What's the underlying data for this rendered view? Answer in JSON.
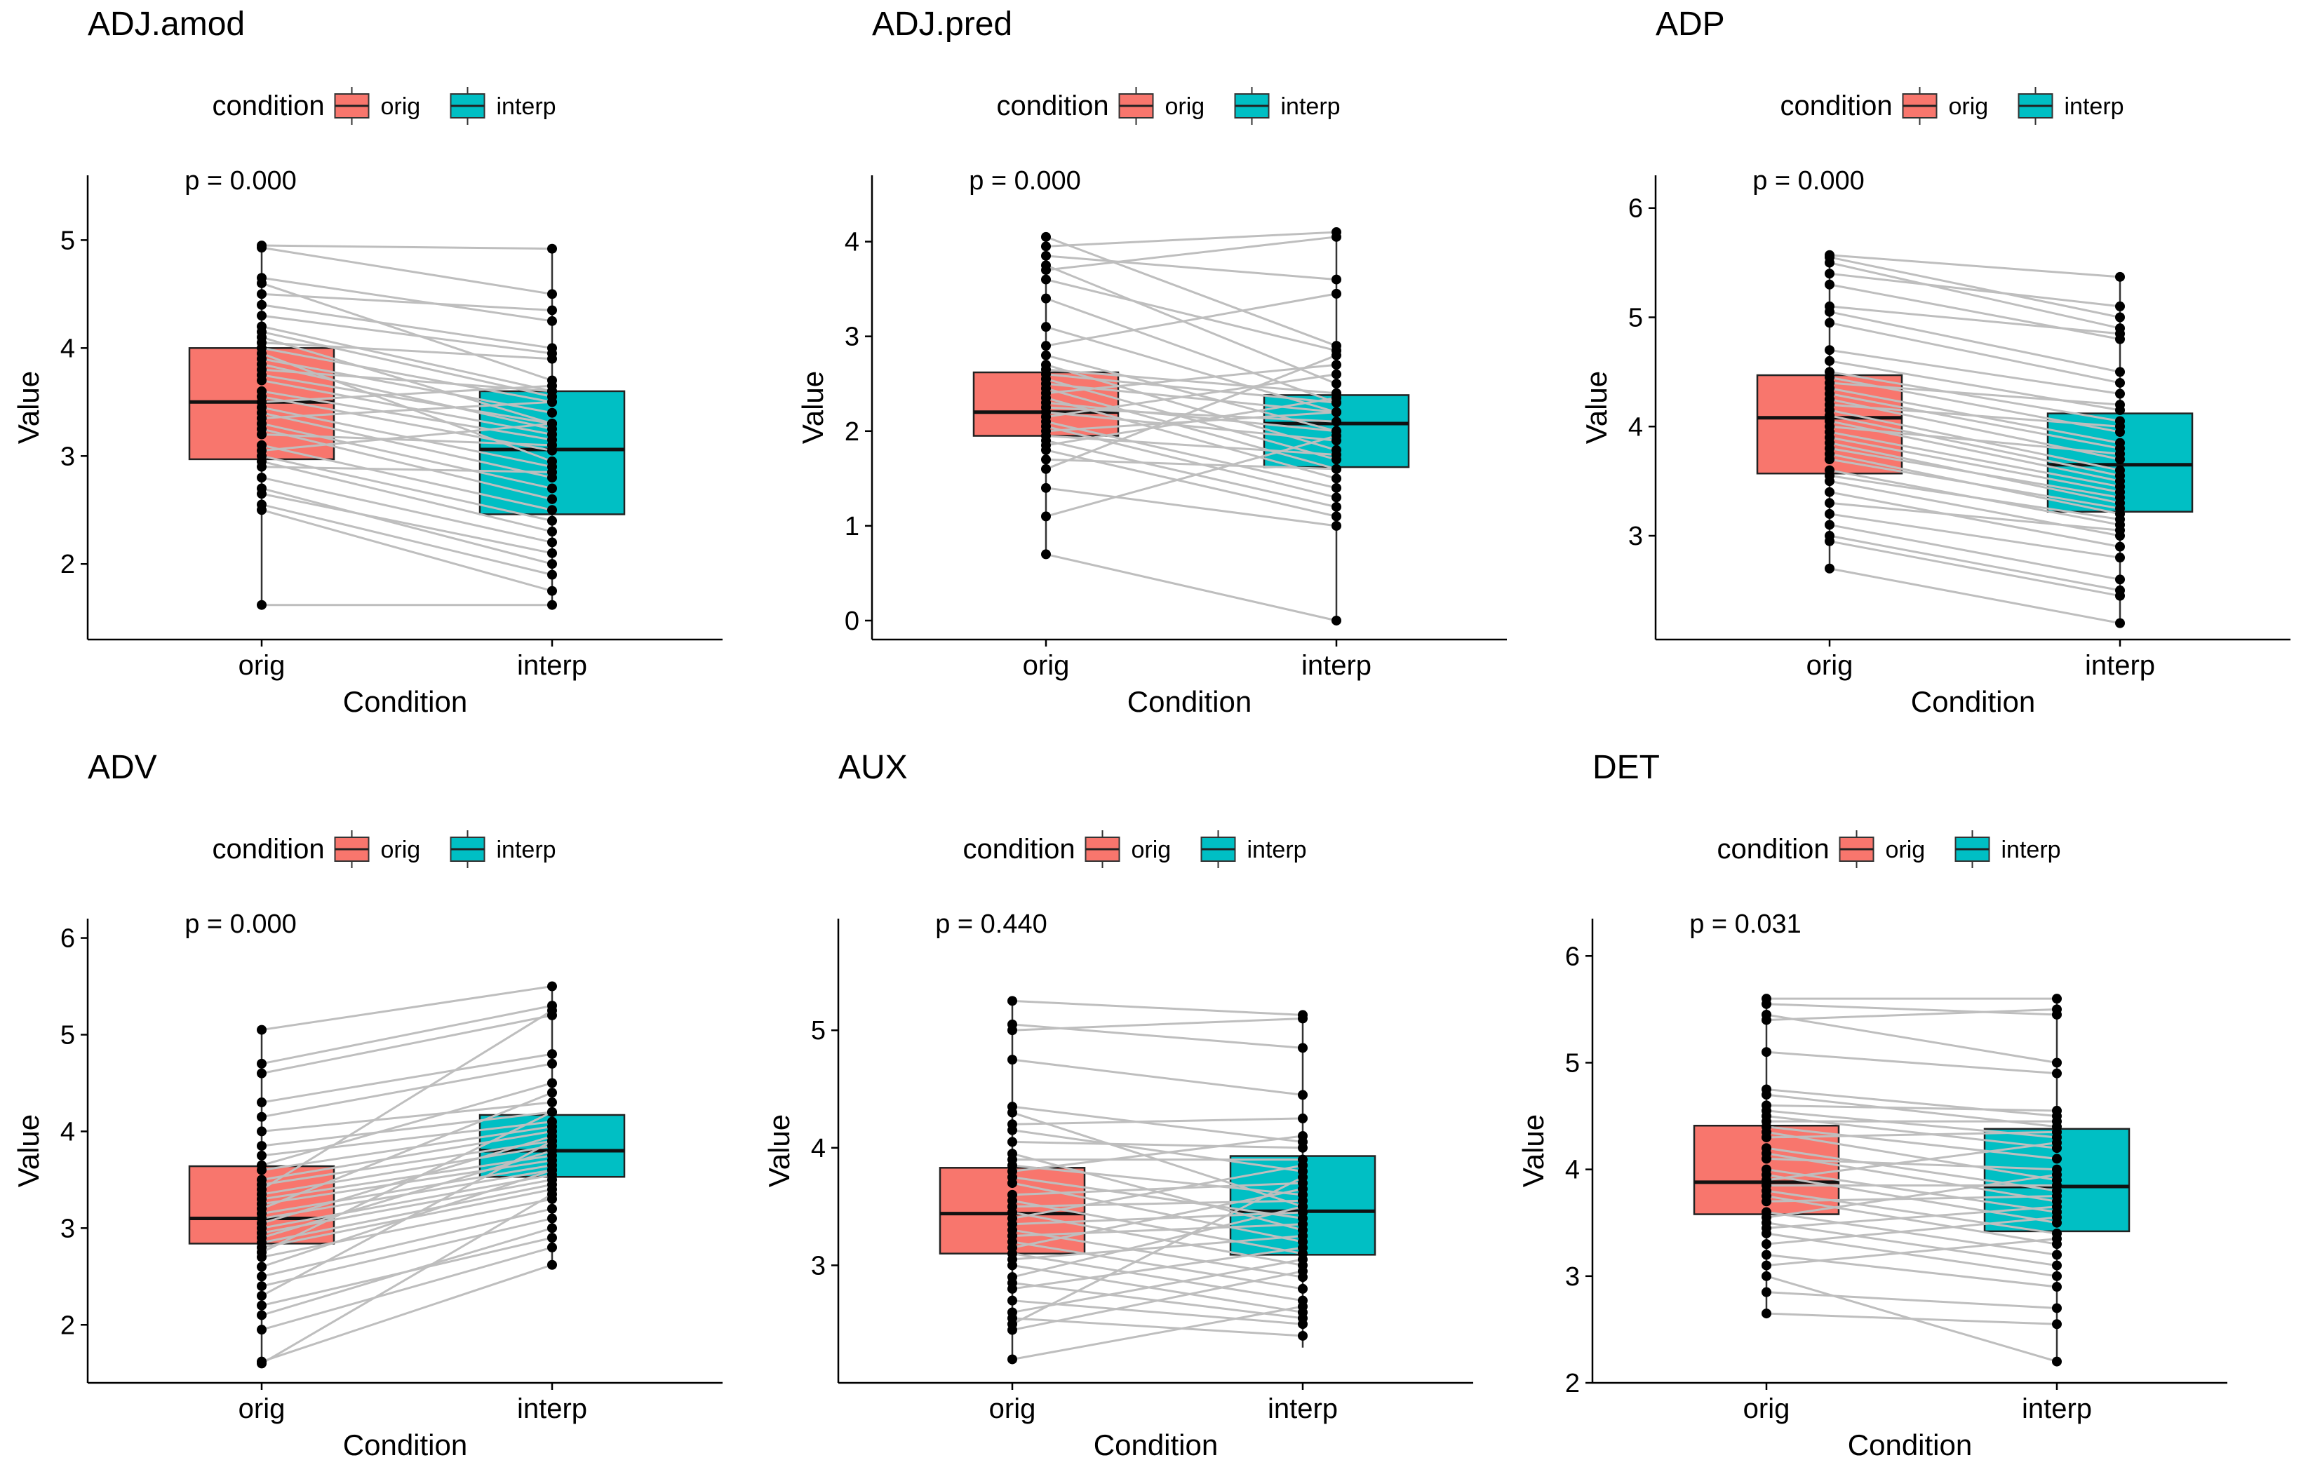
{
  "chart_data": [
    {
      "type": "boxplot-paired",
      "title": "ADJ.amod",
      "xlabel": "Condition",
      "ylabel": "Value",
      "categories": [
        "orig",
        "interp"
      ],
      "legend": {
        "title": "condition",
        "entries": [
          "orig",
          "interp"
        ],
        "placement": "top"
      },
      "p_label": "p = 0.000",
      "ylim": [
        1.3,
        5.6
      ],
      "yticks": [
        2,
        3,
        4,
        5
      ],
      "boxes": [
        {
          "q1": 2.97,
          "median": 3.5,
          "q3": 4.0,
          "min": 1.62,
          "max": 4.95
        },
        {
          "q1": 2.46,
          "median": 3.06,
          "q3": 3.6,
          "min": 1.62,
          "max": 4.92
        }
      ],
      "pairs": [
        [
          4.95,
          4.92
        ],
        [
          4.93,
          4.5
        ],
        [
          4.65,
          4.25
        ],
        [
          4.6,
          3.7
        ],
        [
          4.5,
          4.35
        ],
        [
          4.4,
          4.0
        ],
        [
          4.3,
          3.95
        ],
        [
          4.2,
          3.6
        ],
        [
          4.15,
          3.55
        ],
        [
          4.1,
          3.3
        ],
        [
          4.05,
          3.9
        ],
        [
          4.0,
          3.5
        ],
        [
          3.95,
          2.95
        ],
        [
          3.9,
          3.4
        ],
        [
          3.85,
          3.25
        ],
        [
          3.8,
          3.6
        ],
        [
          3.75,
          3.3
        ],
        [
          3.7,
          3.2
        ],
        [
          3.6,
          3.15
        ],
        [
          3.55,
          3.05
        ],
        [
          3.5,
          3.65
        ],
        [
          3.45,
          2.9
        ],
        [
          3.4,
          2.8
        ],
        [
          3.35,
          3.5
        ],
        [
          3.3,
          2.7
        ],
        [
          3.25,
          2.6
        ],
        [
          3.2,
          3.1
        ],
        [
          3.1,
          2.5
        ],
        [
          3.05,
          3.3
        ],
        [
          3.0,
          2.4
        ],
        [
          2.95,
          2.3
        ],
        [
          2.9,
          2.85
        ],
        [
          2.8,
          2.2
        ],
        [
          2.7,
          2.0
        ],
        [
          2.65,
          2.1
        ],
        [
          2.55,
          1.9
        ],
        [
          2.5,
          1.75
        ],
        [
          1.62,
          1.62
        ]
      ]
    },
    {
      "type": "boxplot-paired",
      "title": "ADJ.pred",
      "xlabel": "Condition",
      "ylabel": "Value",
      "categories": [
        "orig",
        "interp"
      ],
      "legend": {
        "title": "condition",
        "entries": [
          "orig",
          "interp"
        ],
        "placement": "top"
      },
      "p_label": "p = 0.000",
      "ylim": [
        -0.2,
        4.7
      ],
      "yticks": [
        0,
        1,
        2,
        3,
        4
      ],
      "boxes": [
        {
          "q1": 1.95,
          "median": 2.2,
          "q3": 2.62,
          "min": 0.7,
          "max": 4.05
        },
        {
          "q1": 1.62,
          "median": 2.08,
          "q3": 2.38,
          "min": 0.0,
          "max": 4.12
        }
      ],
      "pairs": [
        [
          4.05,
          2.9
        ],
        [
          3.95,
          4.1
        ],
        [
          3.85,
          3.6
        ],
        [
          3.75,
          2.5
        ],
        [
          3.7,
          4.05
        ],
        [
          3.6,
          2.85
        ],
        [
          3.4,
          2.3
        ],
        [
          3.1,
          2.2
        ],
        [
          2.9,
          3.45
        ],
        [
          2.8,
          2.0
        ],
        [
          2.7,
          1.8
        ],
        [
          2.65,
          2.4
        ],
        [
          2.6,
          2.3
        ],
        [
          2.55,
          1.7
        ],
        [
          2.5,
          2.2
        ],
        [
          2.45,
          1.6
        ],
        [
          2.4,
          2.7
        ],
        [
          2.35,
          1.5
        ],
        [
          2.3,
          2.0
        ],
        [
          2.25,
          2.1
        ],
        [
          2.2,
          1.9
        ],
        [
          2.15,
          2.6
        ],
        [
          2.1,
          1.4
        ],
        [
          2.05,
          1.3
        ],
        [
          2.0,
          2.2
        ],
        [
          1.95,
          1.75
        ],
        [
          1.9,
          1.2
        ],
        [
          1.85,
          2.35
        ],
        [
          1.8,
          1.1
        ],
        [
          1.7,
          1.6
        ],
        [
          1.6,
          2.8
        ],
        [
          1.4,
          1.0
        ],
        [
          1.1,
          1.95
        ],
        [
          0.7,
          0.0
        ]
      ]
    },
    {
      "type": "boxplot-paired",
      "title": "ADP",
      "xlabel": "Condition",
      "ylabel": "Value",
      "categories": [
        "orig",
        "interp"
      ],
      "legend": {
        "title": "condition",
        "entries": [
          "orig",
          "interp"
        ],
        "placement": "top"
      },
      "p_label": "p = 0.000",
      "ylim": [
        2.05,
        6.3
      ],
      "yticks": [
        3,
        4,
        5,
        6
      ],
      "boxes": [
        {
          "q1": 3.57,
          "median": 4.08,
          "q3": 4.47,
          "min": 2.7,
          "max": 5.57
        },
        {
          "q1": 3.22,
          "median": 3.65,
          "q3": 4.12,
          "min": 2.2,
          "max": 5.37
        }
      ],
      "pairs": [
        [
          5.57,
          5.37
        ],
        [
          5.55,
          5.0
        ],
        [
          5.5,
          4.9
        ],
        [
          5.4,
          5.1
        ],
        [
          5.3,
          4.8
        ],
        [
          5.1,
          4.85
        ],
        [
          5.05,
          4.5
        ],
        [
          4.95,
          4.4
        ],
        [
          4.7,
          4.3
        ],
        [
          4.6,
          4.15
        ],
        [
          4.5,
          4.05
        ],
        [
          4.45,
          3.95
        ],
        [
          4.4,
          4.2
        ],
        [
          4.35,
          3.85
        ],
        [
          4.3,
          3.8
        ],
        [
          4.25,
          3.7
        ],
        [
          4.2,
          4.0
        ],
        [
          4.15,
          3.6
        ],
        [
          4.1,
          3.55
        ],
        [
          4.05,
          3.5
        ],
        [
          4.0,
          3.75
        ],
        [
          3.95,
          3.45
        ],
        [
          3.9,
          3.4
        ],
        [
          3.85,
          3.3
        ],
        [
          3.8,
          3.35
        ],
        [
          3.75,
          3.2
        ],
        [
          3.7,
          3.25
        ],
        [
          3.6,
          3.1
        ],
        [
          3.55,
          3.15
        ],
        [
          3.5,
          3.0
        ],
        [
          3.4,
          2.9
        ],
        [
          3.3,
          3.05
        ],
        [
          3.2,
          2.8
        ],
        [
          3.1,
          2.6
        ],
        [
          3.0,
          2.5
        ],
        [
          2.95,
          2.45
        ],
        [
          2.7,
          2.2
        ]
      ]
    },
    {
      "type": "boxplot-paired",
      "title": "ADV",
      "xlabel": "Condition",
      "ylabel": "Value",
      "categories": [
        "orig",
        "interp"
      ],
      "legend": {
        "title": "condition",
        "entries": [
          "orig",
          "interp"
        ],
        "placement": "top"
      },
      "p_label": "p = 0.000",
      "ylim": [
        1.4,
        6.2
      ],
      "yticks": [
        2,
        3,
        4,
        5,
        6
      ],
      "boxes": [
        {
          "q1": 2.84,
          "median": 3.1,
          "q3": 3.64,
          "min": 1.6,
          "max": 5.05
        },
        {
          "q1": 3.53,
          "median": 3.8,
          "q3": 4.17,
          "min": 2.62,
          "max": 5.5
        }
      ],
      "pairs": [
        [
          5.05,
          5.5
        ],
        [
          4.7,
          5.3
        ],
        [
          4.6,
          5.2
        ],
        [
          4.3,
          4.8
        ],
        [
          4.15,
          4.7
        ],
        [
          4.0,
          4.3
        ],
        [
          3.85,
          4.2
        ],
        [
          3.75,
          4.1
        ],
        [
          3.65,
          4.5
        ],
        [
          3.6,
          4.05
        ],
        [
          3.5,
          4.0
        ],
        [
          3.45,
          3.9
        ],
        [
          3.4,
          5.25
        ],
        [
          3.35,
          3.85
        ],
        [
          3.3,
          3.75
        ],
        [
          3.25,
          3.7
        ],
        [
          3.2,
          4.4
        ],
        [
          3.15,
          3.65
        ],
        [
          3.1,
          3.6
        ],
        [
          3.05,
          3.95
        ],
        [
          3.0,
          3.55
        ],
        [
          2.95,
          3.5
        ],
        [
          2.9,
          3.8
        ],
        [
          2.85,
          3.45
        ],
        [
          2.8,
          3.4
        ],
        [
          2.75,
          4.2
        ],
        [
          2.7,
          3.3
        ],
        [
          2.6,
          3.6
        ],
        [
          2.5,
          3.2
        ],
        [
          2.4,
          3.1
        ],
        [
          2.3,
          3.9
        ],
        [
          2.2,
          2.9
        ],
        [
          2.1,
          3.0
        ],
        [
          1.95,
          2.8
        ],
        [
          1.62,
          2.62
        ],
        [
          1.6,
          3.35
        ]
      ]
    },
    {
      "type": "boxplot-paired",
      "title": "AUX",
      "xlabel": "Condition",
      "ylabel": "Value",
      "categories": [
        "orig",
        "interp"
      ],
      "legend": {
        "title": "condition",
        "entries": [
          "orig",
          "interp"
        ],
        "placement": "top"
      },
      "p_label": "p = 0.440",
      "ylim": [
        2.0,
        5.95
      ],
      "yticks": [
        3,
        4,
        5
      ],
      "boxes": [
        {
          "q1": 3.1,
          "median": 3.44,
          "q3": 3.83,
          "min": 2.2,
          "max": 5.25
        },
        {
          "q1": 3.09,
          "median": 3.46,
          "q3": 3.93,
          "min": 2.3,
          "max": 5.13
        }
      ],
      "pairs": [
        [
          5.25,
          5.13
        ],
        [
          5.05,
          4.85
        ],
        [
          5.0,
          5.1
        ],
        [
          4.75,
          4.45
        ],
        [
          4.35,
          4.05
        ],
        [
          4.3,
          3.5
        ],
        [
          4.2,
          4.25
        ],
        [
          4.15,
          3.8
        ],
        [
          4.05,
          4.0
        ],
        [
          3.95,
          3.3
        ],
        [
          3.9,
          3.9
        ],
        [
          3.85,
          3.6
        ],
        [
          3.8,
          4.1
        ],
        [
          3.75,
          3.4
        ],
        [
          3.7,
          3.2
        ],
        [
          3.6,
          3.7
        ],
        [
          3.55,
          3.1
        ],
        [
          3.5,
          3.55
        ],
        [
          3.45,
          3.0
        ],
        [
          3.4,
          3.85
        ],
        [
          3.35,
          3.45
        ],
        [
          3.3,
          2.9
        ],
        [
          3.25,
          3.35
        ],
        [
          3.2,
          2.8
        ],
        [
          3.15,
          3.65
        ],
        [
          3.1,
          2.7
        ],
        [
          3.05,
          3.25
        ],
        [
          3.0,
          2.6
        ],
        [
          2.9,
          3.5
        ],
        [
          2.85,
          2.55
        ],
        [
          2.8,
          3.15
        ],
        [
          2.7,
          2.5
        ],
        [
          2.6,
          3.05
        ],
        [
          2.55,
          2.4
        ],
        [
          2.5,
          3.75
        ],
        [
          2.45,
          2.95
        ],
        [
          2.2,
          2.65
        ]
      ]
    },
    {
      "type": "boxplot-paired",
      "title": "DET",
      "xlabel": "Condition",
      "ylabel": "Value",
      "categories": [
        "orig",
        "interp"
      ],
      "legend": {
        "title": "condition",
        "entries": [
          "orig",
          "interp"
        ],
        "placement": "top"
      },
      "p_label": "p = 0.031",
      "ylim": [
        2.0,
        6.35
      ],
      "yticks": [
        2,
        3,
        4,
        5,
        6
      ],
      "boxes": [
        {
          "q1": 3.58,
          "median": 3.88,
          "q3": 4.41,
          "min": 2.65,
          "max": 5.6
        },
        {
          "q1": 3.42,
          "median": 3.84,
          "q3": 4.38,
          "min": 2.2,
          "max": 5.6
        }
      ],
      "pairs": [
        [
          5.6,
          5.6
        ],
        [
          5.55,
          5.45
        ],
        [
          5.45,
          5.0
        ],
        [
          5.4,
          5.5
        ],
        [
          5.1,
          4.9
        ],
        [
          4.75,
          4.5
        ],
        [
          4.7,
          4.4
        ],
        [
          4.6,
          4.55
        ],
        [
          4.55,
          4.3
        ],
        [
          4.5,
          4.2
        ],
        [
          4.45,
          4.45
        ],
        [
          4.4,
          4.1
        ],
        [
          4.35,
          3.9
        ],
        [
          4.3,
          4.35
        ],
        [
          4.2,
          3.8
        ],
        [
          4.15,
          3.7
        ],
        [
          4.1,
          4.0
        ],
        [
          4.0,
          3.6
        ],
        [
          3.95,
          3.5
        ],
        [
          3.9,
          4.25
        ],
        [
          3.85,
          3.85
        ],
        [
          3.8,
          3.4
        ],
        [
          3.75,
          3.3
        ],
        [
          3.7,
          3.75
        ],
        [
          3.6,
          3.2
        ],
        [
          3.55,
          3.95
        ],
        [
          3.5,
          3.1
        ],
        [
          3.45,
          3.65
        ],
        [
          3.4,
          3.0
        ],
        [
          3.3,
          3.55
        ],
        [
          3.2,
          2.9
        ],
        [
          3.1,
          3.35
        ],
        [
          2.85,
          2.7
        ],
        [
          2.65,
          2.55
        ],
        [
          3.0,
          2.2
        ]
      ]
    }
  ]
}
